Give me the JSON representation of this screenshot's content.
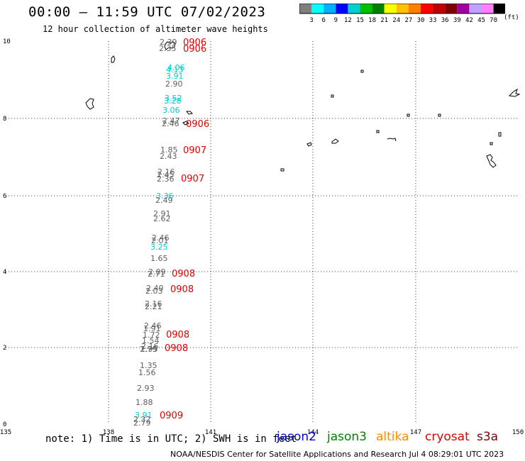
{
  "header": {
    "title": "00:00 – 11:59 UTC 07/02/2023",
    "subtitle": "12 hour collection of altimeter wave heights"
  },
  "colorbar": {
    "colors": [
      "#7f7f7f",
      "#00ffff",
      "#00b0ff",
      "#0000ff",
      "#00d0d0",
      "#00c000",
      "#008000",
      "#ffff00",
      "#ffc000",
      "#ff8000",
      "#ff0000",
      "#c00000",
      "#800000",
      "#a000a0",
      "#c0a0ff",
      "#ff80ff",
      "#000000"
    ],
    "labels": [
      "3",
      "6",
      "9",
      "12",
      "15",
      "18",
      "21",
      "24",
      "27",
      "30",
      "33",
      "36",
      "39",
      "42",
      "45",
      "70"
    ],
    "unit": "(ft)"
  },
  "axes": {
    "x_ticks": [
      "135",
      "138",
      "141",
      "144",
      "147",
      "150"
    ],
    "y_ticks": [
      "0",
      "2",
      "4",
      "6",
      "8",
      "10"
    ]
  },
  "observations": [
    {
      "text": "2.39",
      "color": "#606060"
    },
    {
      "text": "2.35",
      "color": "#606060"
    },
    {
      "text": "4.06",
      "color": "#00cccc"
    },
    {
      "text": "4.13",
      "color": "#00cccc"
    },
    {
      "text": "3.91",
      "color": "#00cccc"
    },
    {
      "text": "2.90",
      "color": "#606060"
    },
    {
      "text": "3.52",
      "color": "#00cccc"
    },
    {
      "text": "3.28",
      "color": "#00cccc"
    },
    {
      "text": "3.06",
      "color": "#00cccc"
    },
    {
      "text": "2.47",
      "color": "#606060"
    },
    {
      "text": "2.46",
      "color": "#606060"
    },
    {
      "text": "1.85",
      "color": "#606060"
    },
    {
      "text": "2.43",
      "color": "#606060"
    },
    {
      "text": "2.16",
      "color": "#606060"
    },
    {
      "text": "2.45",
      "color": "#606060"
    },
    {
      "text": "2.36",
      "color": "#606060"
    },
    {
      "text": "3.36",
      "color": "#00cccc"
    },
    {
      "text": "2.49",
      "color": "#606060"
    },
    {
      "text": "2.91",
      "color": "#606060"
    },
    {
      "text": "2.62",
      "color": "#606060"
    },
    {
      "text": "2.46",
      "color": "#606060"
    },
    {
      "text": "2.01",
      "color": "#606060"
    },
    {
      "text": "3.25",
      "color": "#00cccc"
    },
    {
      "text": "1.65",
      "color": "#606060"
    },
    {
      "text": "2.09",
      "color": "#606060"
    },
    {
      "text": "2.71",
      "color": "#606060"
    },
    {
      "text": "2.40",
      "color": "#606060"
    },
    {
      "text": "2.03",
      "color": "#606060"
    },
    {
      "text": "2.16",
      "color": "#606060"
    },
    {
      "text": "2.21",
      "color": "#606060"
    },
    {
      "text": "2.46",
      "color": "#606060"
    },
    {
      "text": "1.91",
      "color": "#606060"
    },
    {
      "text": "1.72",
      "color": "#606060"
    },
    {
      "text": "1.54",
      "color": "#606060"
    },
    {
      "text": "2.16",
      "color": "#606060"
    },
    {
      "text": "1.95",
      "color": "#606060"
    },
    {
      "text": "2.79",
      "color": "#606060"
    },
    {
      "text": "1.35",
      "color": "#606060"
    },
    {
      "text": "1.56",
      "color": "#606060"
    },
    {
      "text": "2.93",
      "color": "#606060"
    },
    {
      "text": "1.88",
      "color": "#606060"
    },
    {
      "text": "3.91",
      "color": "#00cccc"
    },
    {
      "text": "2.32",
      "color": "#606060"
    },
    {
      "text": "2.79",
      "color": "#606060"
    }
  ],
  "time_labels": [
    "0906",
    "0906",
    "0906",
    "0907",
    "0907",
    "0908",
    "0908",
    "0908",
    "0908",
    "0909"
  ],
  "time_color": "#e00000",
  "footer": {
    "note": "note: 1) Time is in UTC; 2) SWH is in feet",
    "satellites": [
      {
        "name": "jason2",
        "color": "#0000cc"
      },
      {
        "name": "jason3",
        "color": "#008000"
      },
      {
        "name": "altika",
        "color": "#ff8c00"
      },
      {
        "name": "cryosat",
        "color": "#dd0000"
      },
      {
        "name": "s3a",
        "color": "#800000"
      }
    ],
    "credit": "NOAA/NESDIS Center for Satellite Applications and Research   Jul  4 08:29:01 UTC 2023"
  }
}
